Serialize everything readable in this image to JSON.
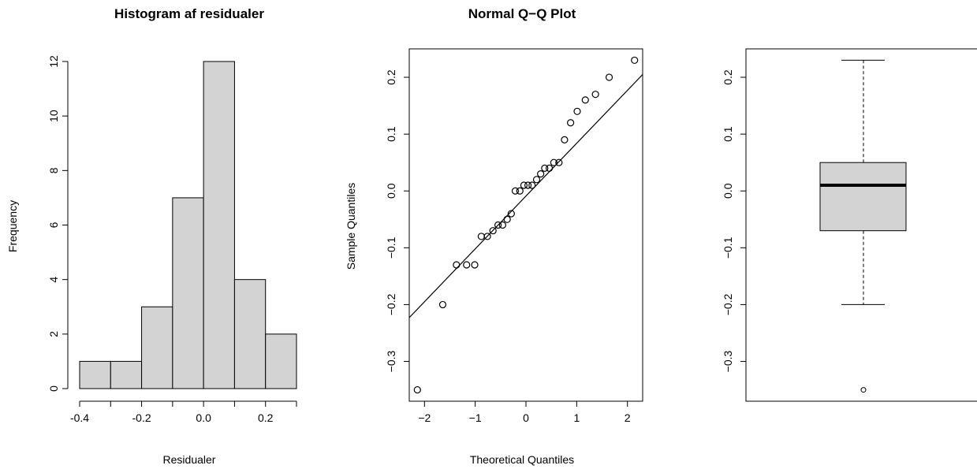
{
  "chart_data": [
    {
      "type": "bar",
      "title": "Histogram af residualer",
      "xlabel": "Residualer",
      "ylabel": "Frequency",
      "bin_edges": [
        -0.4,
        -0.3,
        -0.2,
        -0.1,
        0.0,
        0.1,
        0.2,
        0.3
      ],
      "values": [
        1,
        1,
        3,
        7,
        12,
        4,
        2
      ],
      "xticks": [
        -0.4,
        -0.2,
        0.0,
        0.2
      ],
      "xtick_labels": [
        "-0.4",
        "-0.2",
        "0.0",
        "0.2"
      ],
      "yticks": [
        0,
        2,
        4,
        6,
        8,
        10,
        12
      ],
      "ytick_labels": [
        "0",
        "2",
        "4",
        "6",
        "8",
        "10",
        "12"
      ],
      "xlim": [
        -0.4,
        0.3
      ],
      "ylim": [
        0,
        12
      ],
      "bar_color": "#d3d3d3"
    },
    {
      "type": "scatter",
      "title": "Normal Q−Q Plot",
      "xlabel": "Theoretical Quantiles",
      "ylabel": "Sample Quantiles",
      "x": [
        -2.14,
        -1.64,
        -1.37,
        -1.17,
        -1.01,
        -0.88,
        -0.76,
        -0.65,
        -0.55,
        -0.46,
        -0.37,
        -0.29,
        -0.21,
        -0.12,
        -0.04,
        0.04,
        0.12,
        0.21,
        0.29,
        0.37,
        0.46,
        0.55,
        0.65,
        0.76,
        0.88,
        1.01,
        1.17,
        1.37,
        1.64,
        2.14
      ],
      "y": [
        -0.35,
        -0.2,
        -0.13,
        -0.13,
        -0.13,
        -0.08,
        -0.08,
        -0.07,
        -0.06,
        -0.06,
        -0.05,
        -0.04,
        0.0,
        0.0,
        0.01,
        0.01,
        0.01,
        0.02,
        0.03,
        0.04,
        0.04,
        0.05,
        0.05,
        0.09,
        0.12,
        0.14,
        0.16,
        0.17,
        0.2,
        0.23
      ],
      "reference_line": {
        "slope": 0.093,
        "intercept": -0.009
      },
      "xticks": [
        -2,
        -1,
        0,
        1,
        2
      ],
      "xtick_labels": [
        "−2",
        "−1",
        "0",
        "1",
        "2"
      ],
      "yticks": [
        -0.3,
        -0.2,
        -0.1,
        0.0,
        0.1,
        0.2
      ],
      "ytick_labels": [
        "−0.3",
        "−0.2",
        "−0.1",
        "0.0",
        "0.1",
        "0.2"
      ],
      "xlim": [
        -2.3,
        2.3
      ],
      "ylim": [
        -0.37,
        0.25
      ]
    },
    {
      "type": "box",
      "title": "",
      "xlabel": "",
      "ylabel": "",
      "min_whisker": -0.2,
      "q1": -0.07,
      "median": 0.01,
      "q3": 0.05,
      "max_whisker": 0.23,
      "outliers": [
        -0.35
      ],
      "yticks": [
        -0.3,
        -0.2,
        -0.1,
        0.0,
        0.1,
        0.2
      ],
      "ytick_labels": [
        "−0.3",
        "−0.2",
        "−0.1",
        "0.0",
        "0.1",
        "0.2"
      ],
      "ylim": [
        -0.37,
        0.25
      ],
      "box_color": "#d3d3d3"
    }
  ]
}
